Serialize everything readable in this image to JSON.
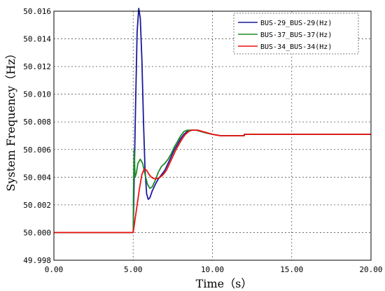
{
  "chart_data": {
    "type": "line",
    "xlabel": "Time（s）",
    "ylabel": "System Frequency（Hz）",
    "xlim": [
      0,
      20
    ],
    "ylim": [
      49.998,
      50.016
    ],
    "x_ticks": [
      "0.00",
      "5.00",
      "10.00",
      "15.00",
      "20.00"
    ],
    "y_ticks": [
      "49.998",
      "50.000",
      "50.002",
      "50.004",
      "50.006",
      "50.008",
      "50.010",
      "50.012",
      "50.014",
      "50.016"
    ],
    "grid": true,
    "legend_position": "top-right",
    "series": [
      {
        "name": "BUS-29_BUS-29(Hz)",
        "color": "#1a1a9a",
        "x": [
          0,
          5.0,
          5.05,
          5.15,
          5.25,
          5.35,
          5.45,
          5.55,
          5.65,
          5.75,
          5.85,
          5.95,
          6.05,
          6.2,
          6.4,
          6.6,
          6.8,
          7.0,
          7.2,
          7.4,
          7.6,
          7.8,
          8.0,
          8.2,
          8.4,
          8.6,
          8.8,
          9.0,
          9.3,
          9.6,
          10.0,
          10.5,
          11.0,
          12.0,
          12.01,
          20.0
        ],
        "y": [
          50.0,
          50.0,
          50.003,
          50.009,
          50.0145,
          50.0162,
          50.0155,
          50.0125,
          50.008,
          50.0045,
          50.0028,
          50.0024,
          50.0025,
          50.003,
          50.0035,
          50.0039,
          50.0042,
          50.0045,
          50.005,
          50.0055,
          50.006,
          50.0064,
          50.0068,
          50.0071,
          50.0073,
          50.0074,
          50.0074,
          50.0074,
          50.0073,
          50.0072,
          50.0071,
          50.007,
          50.007,
          50.007,
          50.0071,
          50.0071
        ]
      },
      {
        "name": "BUS-37_BUS-37(Hz)",
        "color": "#1f8a2a",
        "x": [
          0,
          5.0,
          5.02,
          5.06,
          5.12,
          5.2,
          5.3,
          5.45,
          5.6,
          5.75,
          5.9,
          6.05,
          6.2,
          6.4,
          6.6,
          6.8,
          7.0,
          7.2,
          7.4,
          7.6,
          7.8,
          8.0,
          8.2,
          8.4,
          8.6,
          8.8,
          9.0,
          9.3,
          9.6,
          10.0,
          10.5,
          11.0,
          12.0,
          12.01,
          20.0
        ],
        "y": [
          50.0,
          50.0,
          50.003,
          50.006,
          50.004,
          50.0043,
          50.005,
          50.0053,
          50.005,
          50.0042,
          50.0035,
          50.0032,
          50.0033,
          50.0038,
          50.0044,
          50.0048,
          50.005,
          50.0053,
          50.0057,
          50.0062,
          50.0066,
          50.007,
          50.0073,
          50.0074,
          50.0074,
          50.0074,
          50.0074,
          50.0073,
          50.0072,
          50.0071,
          50.007,
          50.007,
          50.007,
          50.0071,
          50.0071
        ]
      },
      {
        "name": "BUS-34_BUS-34(Hz)",
        "color": "#ee1111",
        "x": [
          0,
          5.0,
          5.1,
          5.25,
          5.4,
          5.55,
          5.7,
          5.85,
          6.0,
          6.15,
          6.3,
          6.5,
          6.7,
          6.9,
          7.1,
          7.3,
          7.5,
          7.7,
          7.9,
          8.1,
          8.3,
          8.5,
          8.7,
          8.9,
          9.1,
          9.4,
          9.7,
          10.0,
          10.5,
          11.0,
          12.0,
          12.01,
          20.0
        ],
        "y": [
          50.0,
          50.0,
          50.0008,
          50.002,
          50.0032,
          50.0042,
          50.0046,
          50.0045,
          50.0042,
          50.004,
          50.0039,
          50.0039,
          50.004,
          50.0042,
          50.0045,
          50.005,
          50.0055,
          50.006,
          50.0064,
          50.0068,
          50.0071,
          50.0073,
          50.0074,
          50.0074,
          50.0074,
          50.0073,
          50.0072,
          50.0071,
          50.007,
          50.007,
          50.007,
          50.0071,
          50.0071
        ]
      }
    ]
  }
}
